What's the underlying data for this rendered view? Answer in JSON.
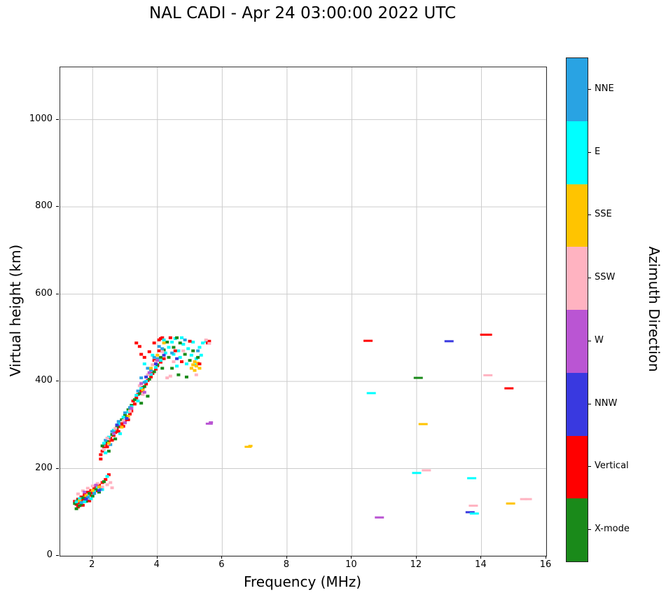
{
  "title": "NAL CADI - Apr 24 03:00:00 2022 UTC",
  "chart_data": {
    "type": "scatter",
    "title": "NAL CADI - Apr 24 03:00:00 2022 UTC",
    "xlabel": "Frequency (MHz)",
    "ylabel": "Virtual height (km)",
    "xlim": [
      1,
      16
    ],
    "ylim": [
      0,
      1120
    ],
    "xticks": [
      2,
      4,
      6,
      8,
      10,
      12,
      14,
      16
    ],
    "yticks": [
      0,
      200,
      400,
      600,
      800,
      1000
    ],
    "grid": true,
    "legend": {
      "title": "Azimuth Direction",
      "position": "right-colorbar",
      "categories": [
        {
          "label": "NNE",
          "color": "#29A3E3"
        },
        {
          "label": "E",
          "color": "#00FFFF"
        },
        {
          "label": "SSE",
          "color": "#FFC400"
        },
        {
          "label": "SSW",
          "color": "#FFB3C1"
        },
        {
          "label": "W",
          "color": "#BA55D3"
        },
        {
          "label": "NNW",
          "color": "#3939E0"
        },
        {
          "label": "Vertical",
          "color": "#FF0000"
        },
        {
          "label": "X-mode",
          "color": "#1A8A1A"
        }
      ]
    },
    "point_format": "[frequency_MHz, virtual_height_km, category_index, optional_dash_width_px]",
    "points": [
      [
        1.45,
        125,
        6
      ],
      [
        1.5,
        118,
        6
      ],
      [
        1.55,
        130,
        6
      ],
      [
        1.6,
        122,
        6
      ],
      [
        1.65,
        135,
        6
      ],
      [
        1.7,
        128,
        6
      ],
      [
        1.75,
        140,
        6
      ],
      [
        1.8,
        133,
        6
      ],
      [
        1.85,
        146,
        6
      ],
      [
        1.9,
        139,
        6
      ],
      [
        1.95,
        150,
        6
      ],
      [
        2.0,
        144,
        6
      ],
      [
        2.05,
        156,
        6
      ],
      [
        2.1,
        149,
        6
      ],
      [
        2.2,
        162,
        6
      ],
      [
        2.25,
        222,
        6
      ],
      [
        2.3,
        168,
        6
      ],
      [
        2.4,
        175,
        6
      ],
      [
        2.5,
        186,
        6
      ],
      [
        1.55,
        112,
        6
      ],
      [
        1.7,
        116,
        6
      ],
      [
        1.9,
        126,
        6
      ],
      [
        1.45,
        120,
        7
      ],
      [
        1.55,
        127,
        7
      ],
      [
        1.6,
        115,
        7
      ],
      [
        1.7,
        133,
        7
      ],
      [
        1.8,
        125,
        7
      ],
      [
        1.9,
        143,
        7
      ],
      [
        2.0,
        137,
        7
      ],
      [
        2.1,
        152,
        7
      ],
      [
        2.2,
        146,
        7
      ],
      [
        2.35,
        170,
        7
      ],
      [
        1.5,
        108,
        7
      ],
      [
        1.65,
        119,
        7
      ],
      [
        1.5,
        124,
        1
      ],
      [
        1.6,
        131,
        1
      ],
      [
        1.75,
        124,
        1
      ],
      [
        1.85,
        137,
        1
      ],
      [
        1.95,
        131,
        1
      ],
      [
        2.05,
        147,
        1
      ],
      [
        2.15,
        158,
        1
      ],
      [
        2.3,
        152,
        1
      ],
      [
        2.45,
        182,
        1
      ],
      [
        1.55,
        142,
        3
      ],
      [
        1.7,
        149,
        3
      ],
      [
        1.85,
        155,
        3
      ],
      [
        2.0,
        160,
        3
      ],
      [
        2.15,
        166,
        3
      ],
      [
        2.3,
        158,
        3
      ],
      [
        2.45,
        163,
        3
      ],
      [
        2.55,
        168,
        3
      ],
      [
        2.6,
        156,
        3
      ],
      [
        1.6,
        126,
        2
      ],
      [
        1.8,
        138,
        2
      ],
      [
        2.0,
        150,
        2
      ],
      [
        2.2,
        158,
        2
      ],
      [
        1.65,
        122,
        0
      ],
      [
        1.85,
        134,
        0
      ],
      [
        2.05,
        143,
        0
      ],
      [
        2.25,
        152,
        0
      ],
      [
        1.75,
        146,
        4
      ],
      [
        2.1,
        162,
        4
      ],
      [
        1.8,
        130,
        5
      ],
      [
        2.2,
        150,
        5
      ],
      [
        2.25,
        232,
        6
      ],
      [
        2.3,
        240,
        6
      ],
      [
        2.35,
        248,
        6
      ],
      [
        2.4,
        256,
        6
      ],
      [
        2.45,
        250,
        6
      ],
      [
        2.5,
        262,
        6
      ],
      [
        2.55,
        270,
        6
      ],
      [
        2.6,
        265,
        6
      ],
      [
        2.65,
        276,
        6
      ],
      [
        2.7,
        283,
        6
      ],
      [
        2.75,
        290,
        6
      ],
      [
        2.8,
        285,
        6
      ],
      [
        2.85,
        296,
        6
      ],
      [
        2.9,
        303,
        6
      ],
      [
        2.95,
        297,
        6
      ],
      [
        3.0,
        310,
        6
      ],
      [
        3.05,
        318,
        6
      ],
      [
        3.1,
        312,
        6
      ],
      [
        3.15,
        325,
        6
      ],
      [
        3.2,
        332,
        6
      ],
      [
        2.3,
        252,
        7
      ],
      [
        2.45,
        262,
        7
      ],
      [
        2.6,
        278,
        7
      ],
      [
        2.75,
        295,
        7
      ],
      [
        2.9,
        312,
        7
      ],
      [
        3.0,
        322,
        7
      ],
      [
        3.1,
        335,
        7
      ],
      [
        3.2,
        345,
        7
      ],
      [
        2.5,
        240,
        7
      ],
      [
        2.7,
        268,
        7
      ],
      [
        2.35,
        258,
        1
      ],
      [
        2.5,
        272,
        1
      ],
      [
        2.65,
        288,
        1
      ],
      [
        2.8,
        302,
        1
      ],
      [
        2.95,
        318,
        1
      ],
      [
        3.1,
        330,
        1
      ],
      [
        3.2,
        342,
        1
      ],
      [
        2.4,
        236,
        1
      ],
      [
        2.85,
        280,
        1
      ],
      [
        2.4,
        265,
        0
      ],
      [
        2.6,
        285,
        0
      ],
      [
        2.8,
        308,
        0
      ],
      [
        3.0,
        328,
        0
      ],
      [
        3.15,
        340,
        0
      ],
      [
        2.55,
        255,
        0
      ],
      [
        2.45,
        270,
        3
      ],
      [
        2.7,
        292,
        3
      ],
      [
        2.95,
        310,
        3
      ],
      [
        3.15,
        332,
        3
      ],
      [
        2.35,
        244,
        3
      ],
      [
        2.5,
        258,
        2
      ],
      [
        2.9,
        295,
        2
      ],
      [
        3.1,
        320,
        2
      ],
      [
        2.65,
        280,
        4
      ],
      [
        3.0,
        305,
        4
      ],
      [
        3.2,
        338,
        4
      ],
      [
        2.75,
        300,
        5
      ],
      [
        3.05,
        315,
        5
      ],
      [
        3.25,
        355,
        6
      ],
      [
        3.3,
        348,
        6
      ],
      [
        3.35,
        362,
        6
      ],
      [
        3.4,
        370,
        6
      ],
      [
        3.45,
        480,
        6
      ],
      [
        3.5,
        378,
        6
      ],
      [
        3.55,
        386,
        6
      ],
      [
        3.6,
        455,
        6
      ],
      [
        3.65,
        394,
        6
      ],
      [
        3.7,
        402,
        6
      ],
      [
        3.75,
        468,
        6
      ],
      [
        3.8,
        410,
        6
      ],
      [
        3.85,
        418,
        6
      ],
      [
        3.9,
        488,
        6
      ],
      [
        3.95,
        428,
        6
      ],
      [
        4.0,
        436,
        6
      ],
      [
        4.05,
        495,
        6
      ],
      [
        4.1,
        444,
        6
      ],
      [
        4.15,
        500,
        6
      ],
      [
        4.2,
        452,
        6
      ],
      [
        3.35,
        488,
        6
      ],
      [
        3.5,
        462,
        6
      ],
      [
        3.9,
        448,
        6
      ],
      [
        4.05,
        470,
        6
      ],
      [
        4.1,
        498,
        6
      ],
      [
        3.3,
        358,
        7
      ],
      [
        3.45,
        372,
        7
      ],
      [
        3.6,
        388,
        7
      ],
      [
        3.75,
        405,
        7
      ],
      [
        3.9,
        422,
        7
      ],
      [
        4.0,
        438,
        7
      ],
      [
        4.1,
        455,
        7
      ],
      [
        4.2,
        472,
        7
      ],
      [
        4.3,
        490,
        7
      ],
      [
        3.5,
        350,
        7
      ],
      [
        3.7,
        366,
        7
      ],
      [
        4.15,
        430,
        7
      ],
      [
        3.35,
        368,
        1
      ],
      [
        3.5,
        384,
        1
      ],
      [
        3.65,
        400,
        1
      ],
      [
        3.8,
        416,
        1
      ],
      [
        3.95,
        432,
        1
      ],
      [
        4.1,
        448,
        1
      ],
      [
        4.25,
        465,
        1
      ],
      [
        3.4,
        355,
        1
      ],
      [
        3.6,
        440,
        1
      ],
      [
        3.85,
        460,
        1
      ],
      [
        4.2,
        495,
        1
      ],
      [
        3.4,
        378,
        0
      ],
      [
        3.6,
        398,
        0
      ],
      [
        3.8,
        425,
        0
      ],
      [
        4.0,
        452,
        0
      ],
      [
        4.15,
        475,
        0
      ],
      [
        3.5,
        408,
        0
      ],
      [
        3.7,
        430,
        0
      ],
      [
        3.9,
        455,
        0
      ],
      [
        4.05,
        480,
        0
      ],
      [
        3.45,
        390,
        3
      ],
      [
        3.7,
        415,
        3
      ],
      [
        3.95,
        445,
        3
      ],
      [
        4.15,
        468,
        3
      ],
      [
        3.55,
        370,
        3
      ],
      [
        3.85,
        438,
        3
      ],
      [
        3.55,
        380,
        2
      ],
      [
        3.8,
        430,
        2
      ],
      [
        4.0,
        460,
        2
      ],
      [
        4.2,
        488,
        2
      ],
      [
        3.5,
        395,
        4
      ],
      [
        3.75,
        420,
        4
      ],
      [
        4.0,
        448,
        4
      ],
      [
        3.6,
        375,
        4
      ],
      [
        3.65,
        410,
        5
      ],
      [
        3.95,
        440,
        5
      ],
      [
        4.2,
        460,
        5
      ],
      [
        4.35,
        478,
        1
      ],
      [
        4.45,
        490,
        1
      ],
      [
        4.5,
        462,
        1
      ],
      [
        4.55,
        498,
        1
      ],
      [
        4.65,
        470,
        1
      ],
      [
        4.7,
        455,
        1
      ],
      [
        4.8,
        485,
        1
      ],
      [
        4.9,
        440,
        1
      ],
      [
        4.95,
        475,
        1
      ],
      [
        5.05,
        460,
        1
      ],
      [
        5.1,
        490,
        1
      ],
      [
        5.2,
        452,
        1
      ],
      [
        5.3,
        478,
        1
      ],
      [
        5.4,
        488,
        1
      ],
      [
        5.5,
        492,
        1
      ],
      [
        4.6,
        435,
        1
      ],
      [
        4.75,
        500,
        1
      ],
      [
        5.15,
        438,
        1
      ],
      [
        5.35,
        460,
        1
      ],
      [
        4.35,
        455,
        7
      ],
      [
        4.5,
        478,
        7
      ],
      [
        4.6,
        500,
        7
      ],
      [
        4.7,
        488,
        7
      ],
      [
        4.85,
        462,
        7
      ],
      [
        5.0,
        448,
        7
      ],
      [
        5.1,
        470,
        7
      ],
      [
        5.25,
        455,
        7
      ],
      [
        4.45,
        430,
        7
      ],
      [
        4.65,
        415,
        7
      ],
      [
        4.9,
        410,
        7
      ],
      [
        5.05,
        430,
        2
      ],
      [
        5.1,
        438,
        2
      ],
      [
        5.15,
        425,
        2
      ],
      [
        5.2,
        435,
        2
      ],
      [
        5.25,
        442,
        2
      ],
      [
        5.3,
        430,
        2
      ],
      [
        5.15,
        445,
        2
      ],
      [
        4.4,
        500,
        6
      ],
      [
        4.55,
        470,
        6
      ],
      [
        4.75,
        445,
        6
      ],
      [
        5.0,
        492,
        6
      ],
      [
        5.3,
        440,
        6
      ],
      [
        5.55,
        488,
        6
      ],
      [
        5.6,
        492,
        6
      ],
      [
        4.5,
        445,
        3
      ],
      [
        4.8,
        470,
        3
      ],
      [
        5.2,
        415,
        3
      ],
      [
        5.5,
        495,
        3
      ],
      [
        5.6,
        487,
        3
      ],
      [
        4.45,
        465,
        0
      ],
      [
        4.85,
        495,
        0
      ],
      [
        5.25,
        470,
        0
      ],
      [
        4.6,
        452,
        5
      ],
      [
        4.3,
        408,
        3
      ],
      [
        4.4,
        412,
        3
      ],
      [
        5.6,
        303,
        4,
        10
      ],
      [
        5.65,
        306,
        4,
        6
      ],
      [
        6.8,
        250,
        2,
        10
      ],
      [
        6.87,
        252,
        2,
        6
      ],
      [
        10.5,
        493,
        6,
        13
      ],
      [
        10.6,
        373,
        1,
        13
      ],
      [
        10.85,
        88,
        4,
        13
      ],
      [
        12.0,
        190,
        1,
        13
      ],
      [
        12.05,
        408,
        7,
        13
      ],
      [
        12.2,
        302,
        2,
        13
      ],
      [
        12.3,
        196,
        3,
        13
      ],
      [
        13.0,
        492,
        5,
        13
      ],
      [
        13.7,
        178,
        1,
        13
      ],
      [
        13.65,
        100,
        5,
        13
      ],
      [
        13.78,
        97,
        1,
        13
      ],
      [
        13.75,
        115,
        3,
        13
      ],
      [
        14.1,
        507,
        6,
        13
      ],
      [
        14.22,
        507,
        6,
        10
      ],
      [
        14.2,
        414,
        3,
        13
      ],
      [
        14.85,
        384,
        6,
        13
      ],
      [
        14.9,
        120,
        2,
        13
      ],
      [
        15.3,
        130,
        3,
        10
      ],
      [
        15.45,
        130,
        3,
        10
      ]
    ]
  }
}
